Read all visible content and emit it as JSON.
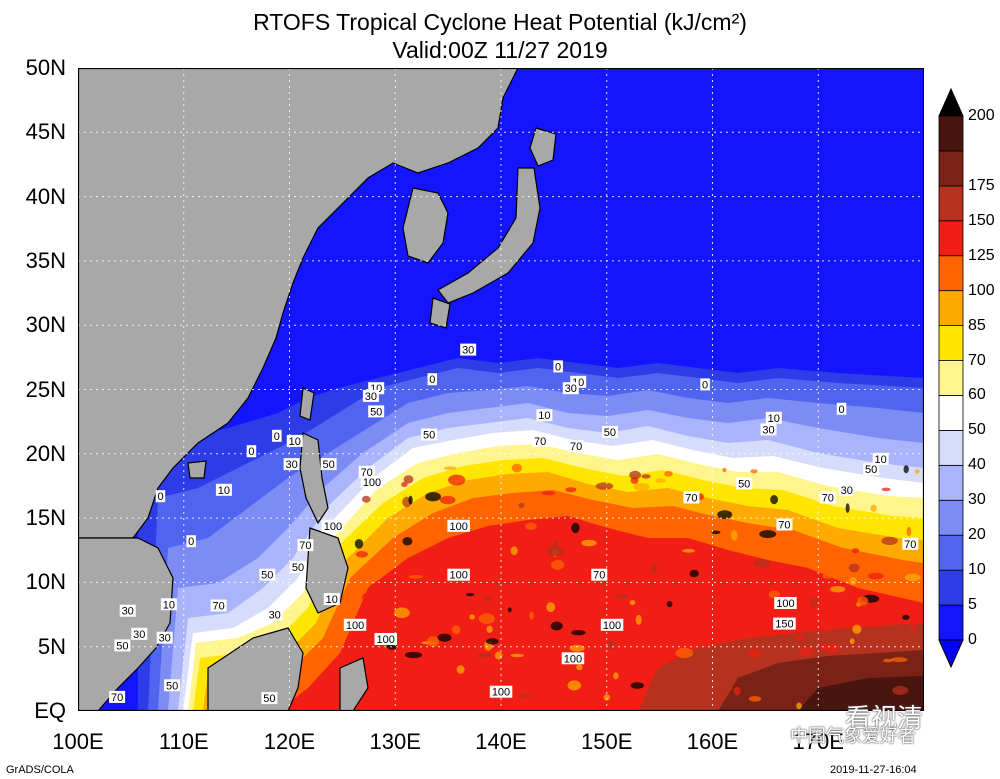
{
  "title": {
    "line1": "RTOFS Tropical Cyclone Heat Potential (kJ/cm²)",
    "line2": "Valid:00Z 11/27 2019"
  },
  "map": {
    "lon_range": [
      100,
      180
    ],
    "lat_range": [
      0,
      50
    ],
    "y_ticks": [
      "50N",
      "45N",
      "40N",
      "35N",
      "30N",
      "25N",
      "20N",
      "15N",
      "10N",
      "5N",
      "EQ"
    ],
    "x_ticks": [
      "100E",
      "110E",
      "120E",
      "130E",
      "140E",
      "150E",
      "160E",
      "170E"
    ],
    "grid": "dotted",
    "land_color": "#a8a8a8",
    "contour_labels": [
      {
        "text": "30",
        "lon": 136.9,
        "lat": 28.1
      },
      {
        "text": "0",
        "lon": 145.4,
        "lat": 26.8
      },
      {
        "text": "10",
        "lon": 147.3,
        "lat": 25.6
      },
      {
        "text": "30",
        "lon": 146.6,
        "lat": 25.1
      },
      {
        "text": "0",
        "lon": 133.5,
        "lat": 25.8
      },
      {
        "text": "10",
        "lon": 128.2,
        "lat": 25.1
      },
      {
        "text": "30",
        "lon": 127.7,
        "lat": 24.5
      },
      {
        "text": "50",
        "lon": 128.2,
        "lat": 23.3
      },
      {
        "text": "0",
        "lon": 159.3,
        "lat": 25.4
      },
      {
        "text": "10",
        "lon": 144.1,
        "lat": 23.0
      },
      {
        "text": "50",
        "lon": 133.2,
        "lat": 21.5
      },
      {
        "text": "70",
        "lon": 143.7,
        "lat": 21.0
      },
      {
        "text": "70",
        "lon": 147.1,
        "lat": 20.6
      },
      {
        "text": "50",
        "lon": 150.3,
        "lat": 21.7
      },
      {
        "text": "10",
        "lon": 165.8,
        "lat": 22.8
      },
      {
        "text": "30",
        "lon": 165.3,
        "lat": 21.9
      },
      {
        "text": "0",
        "lon": 172.2,
        "lat": 23.5
      },
      {
        "text": "0",
        "lon": 118.8,
        "lat": 21.4
      },
      {
        "text": "10",
        "lon": 120.5,
        "lat": 21.0
      },
      {
        "text": "0",
        "lon": 116.4,
        "lat": 20.2
      },
      {
        "text": "30",
        "lon": 120.2,
        "lat": 19.2
      },
      {
        "text": "50",
        "lon": 123.7,
        "lat": 19.2
      },
      {
        "text": "70",
        "lon": 127.3,
        "lat": 18.6
      },
      {
        "text": "100",
        "lon": 127.8,
        "lat": 17.8
      },
      {
        "text": "10",
        "lon": 113.8,
        "lat": 17.2
      },
      {
        "text": "0",
        "lon": 107.8,
        "lat": 16.7
      },
      {
        "text": "70",
        "lon": 158.0,
        "lat": 16.6
      },
      {
        "text": "50",
        "lon": 163.0,
        "lat": 17.7
      },
      {
        "text": "70",
        "lon": 170.9,
        "lat": 16.6
      },
      {
        "text": "30",
        "lon": 172.7,
        "lat": 17.2
      },
      {
        "text": "50",
        "lon": 175.0,
        "lat": 18.8
      },
      {
        "text": "10",
        "lon": 175.9,
        "lat": 19.6
      },
      {
        "text": "100",
        "lon": 124.1,
        "lat": 14.4
      },
      {
        "text": "100",
        "lon": 136.0,
        "lat": 14.4
      },
      {
        "text": "70",
        "lon": 166.8,
        "lat": 14.5
      },
      {
        "text": "70",
        "lon": 121.5,
        "lat": 12.9
      },
      {
        "text": "0",
        "lon": 110.7,
        "lat": 13.2
      },
      {
        "text": "70",
        "lon": 178.7,
        "lat": 13.0
      },
      {
        "text": "50",
        "lon": 117.9,
        "lat": 10.6
      },
      {
        "text": "100",
        "lon": 136.0,
        "lat": 10.6
      },
      {
        "text": "70",
        "lon": 149.3,
        "lat": 10.6
      },
      {
        "text": "50",
        "lon": 120.8,
        "lat": 11.2
      },
      {
        "text": "10",
        "lon": 124.0,
        "lat": 8.7
      },
      {
        "text": "70",
        "lon": 113.3,
        "lat": 8.2
      },
      {
        "text": "10",
        "lon": 108.6,
        "lat": 8.3
      },
      {
        "text": "30",
        "lon": 104.7,
        "lat": 7.8
      },
      {
        "text": "100",
        "lon": 166.9,
        "lat": 8.4
      },
      {
        "text": "30",
        "lon": 118.6,
        "lat": 7.5
      },
      {
        "text": "100",
        "lon": 126.2,
        "lat": 6.7
      },
      {
        "text": "100",
        "lon": 150.5,
        "lat": 6.7
      },
      {
        "text": "150",
        "lon": 166.8,
        "lat": 6.8
      },
      {
        "text": "30",
        "lon": 105.8,
        "lat": 6.0
      },
      {
        "text": "30",
        "lon": 108.2,
        "lat": 5.7
      },
      {
        "text": "100",
        "lon": 129.1,
        "lat": 5.6
      },
      {
        "text": "50",
        "lon": 104.2,
        "lat": 5.1
      },
      {
        "text": "100",
        "lon": 146.8,
        "lat": 4.1
      },
      {
        "text": "50",
        "lon": 108.9,
        "lat": 2.0
      },
      {
        "text": "100",
        "lon": 140.0,
        "lat": 1.5
      },
      {
        "text": "70",
        "lon": 103.7,
        "lat": 1.1
      },
      {
        "text": "50",
        "lon": 118.1,
        "lat": 1.0
      }
    ]
  },
  "colorbar": {
    "labels": [
      "0",
      "5",
      "10",
      "20",
      "30",
      "40",
      "50",
      "60",
      "70",
      "85",
      "100",
      "125",
      "150",
      "175",
      "200"
    ],
    "colors": [
      "#1414ff",
      "#2d3ce6",
      "#5064f0",
      "#7d8cf5",
      "#aab4fa",
      "#d7dcfc",
      "#ffffff",
      "#fff58c",
      "#ffe600",
      "#ffaa00",
      "#ff6400",
      "#f01e14",
      "#b4321e",
      "#7a2216",
      "#4a140f"
    ],
    "top_arrow_color": "#000000",
    "bottom_arrow_color": "#0000ff"
  },
  "footer": {
    "left": "GrADS/COLA",
    "right": "2019-11-27-16:04"
  },
  "watermark": {
    "text": "中国气象爱好者",
    "logo_text": "看视清"
  }
}
